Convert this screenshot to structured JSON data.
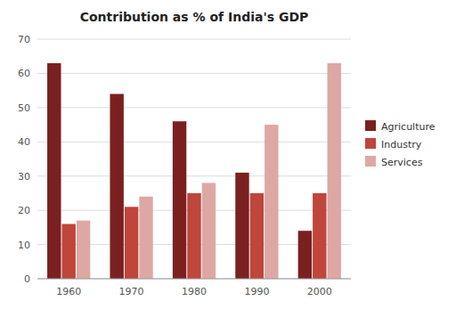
{
  "chart_data": {
    "type": "bar",
    "title": "Contribution as % of India's GDP",
    "categories": [
      "1960",
      "1970",
      "1980",
      "1990",
      "2000"
    ],
    "series": [
      {
        "name": "Agriculture",
        "color": "#7B2020",
        "values": [
          63,
          54,
          46,
          31,
          14
        ]
      },
      {
        "name": "Industry",
        "color": "#C0453A",
        "values": [
          16,
          21,
          25,
          25,
          25
        ]
      },
      {
        "name": "Services",
        "color": "#DDA8A4",
        "values": [
          17,
          24,
          28,
          45,
          63
        ]
      }
    ],
    "ylim": [
      0,
      70
    ],
    "yticks": [
      0,
      10,
      20,
      30,
      40,
      50,
      60,
      70
    ],
    "grid": true,
    "legend": "right"
  }
}
